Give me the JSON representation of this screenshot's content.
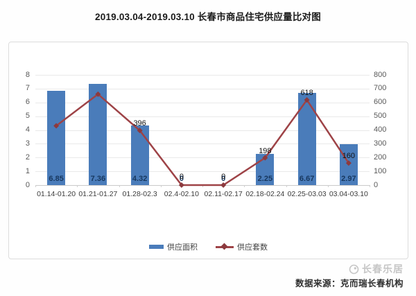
{
  "chart_data": {
    "type": "bar",
    "title": "2019.03.04-2019.03.10 长春市商品住宅供应量比对图",
    "categories": [
      "01.14-01.20",
      "01.21-01.27",
      "01.28-02.3",
      "02.4-02.10",
      "02.11-02.17",
      "02.18-02.24",
      "02.25-03.03",
      "03.04-03.10"
    ],
    "series": [
      {
        "name": "供应面积",
        "type": "bar",
        "axis": "left",
        "color": "#4a7cba",
        "label_color": "#17375e",
        "values": [
          6.85,
          7.36,
          4.32,
          0,
          0,
          2.25,
          6.67,
          2.97
        ],
        "labels": [
          "6.85",
          "7.36",
          "4.32",
          "0",
          "0",
          "2.25",
          "6.67",
          "2.97"
        ]
      },
      {
        "name": "供应套数",
        "type": "line",
        "axis": "right",
        "color": "#9e4347",
        "marker_color": "#8c3a3e",
        "values": [
          430,
          660,
          396,
          0,
          0,
          198,
          618,
          160
        ],
        "labels": [
          "",
          "",
          "396",
          "0",
          "0",
          "198",
          "618",
          "160"
        ]
      }
    ],
    "left_axis": {
      "min": 0,
      "max": 8,
      "step": 1,
      "ticks": [
        "0",
        "1",
        "2",
        "3",
        "4",
        "5",
        "6",
        "7",
        "8"
      ]
    },
    "right_axis": {
      "min": 0,
      "max": 800,
      "step": 100,
      "ticks": [
        "0",
        "100",
        "200",
        "300",
        "400",
        "500",
        "600",
        "700",
        "800"
      ]
    },
    "grid": true,
    "legend_position": "bottom"
  },
  "footer": {
    "logo_text": "长春乐居",
    "source": "数据来源：克而瑞长春机构"
  }
}
